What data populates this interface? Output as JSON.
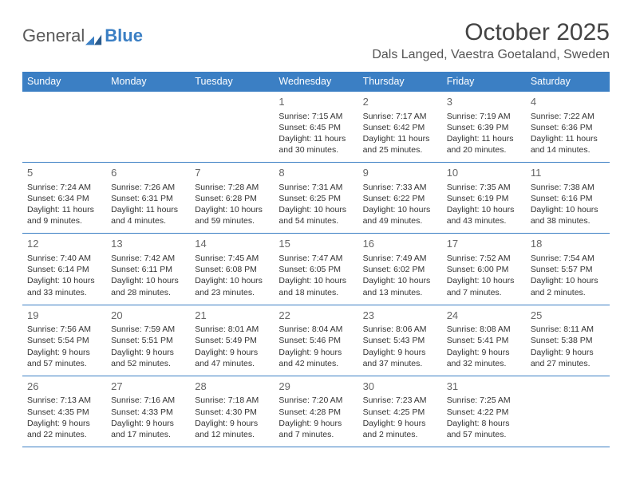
{
  "logo": {
    "general": "General",
    "blue": "Blue"
  },
  "title": "October 2025",
  "location": "Dals Langed, Vaestra Goetaland, Sweden",
  "colors": {
    "header_bg": "#3b7fc4",
    "header_text": "#ffffff",
    "rule": "#3b7fc4",
    "text": "#333333",
    "daynum": "#666666",
    "logo_gray": "#5a5a5a",
    "logo_blue": "#3b7fc4",
    "background": "#ffffff"
  },
  "dow": [
    "Sunday",
    "Monday",
    "Tuesday",
    "Wednesday",
    "Thursday",
    "Friday",
    "Saturday"
  ],
  "weeks": [
    [
      null,
      null,
      null,
      {
        "n": "1",
        "sr": "7:15 AM",
        "ss": "6:45 PM",
        "dl": "11 hours and 30 minutes."
      },
      {
        "n": "2",
        "sr": "7:17 AM",
        "ss": "6:42 PM",
        "dl": "11 hours and 25 minutes."
      },
      {
        "n": "3",
        "sr": "7:19 AM",
        "ss": "6:39 PM",
        "dl": "11 hours and 20 minutes."
      },
      {
        "n": "4",
        "sr": "7:22 AM",
        "ss": "6:36 PM",
        "dl": "11 hours and 14 minutes."
      }
    ],
    [
      {
        "n": "5",
        "sr": "7:24 AM",
        "ss": "6:34 PM",
        "dl": "11 hours and 9 minutes."
      },
      {
        "n": "6",
        "sr": "7:26 AM",
        "ss": "6:31 PM",
        "dl": "11 hours and 4 minutes."
      },
      {
        "n": "7",
        "sr": "7:28 AM",
        "ss": "6:28 PM",
        "dl": "10 hours and 59 minutes."
      },
      {
        "n": "8",
        "sr": "7:31 AM",
        "ss": "6:25 PM",
        "dl": "10 hours and 54 minutes."
      },
      {
        "n": "9",
        "sr": "7:33 AM",
        "ss": "6:22 PM",
        "dl": "10 hours and 49 minutes."
      },
      {
        "n": "10",
        "sr": "7:35 AM",
        "ss": "6:19 PM",
        "dl": "10 hours and 43 minutes."
      },
      {
        "n": "11",
        "sr": "7:38 AM",
        "ss": "6:16 PM",
        "dl": "10 hours and 38 minutes."
      }
    ],
    [
      {
        "n": "12",
        "sr": "7:40 AM",
        "ss": "6:14 PM",
        "dl": "10 hours and 33 minutes."
      },
      {
        "n": "13",
        "sr": "7:42 AM",
        "ss": "6:11 PM",
        "dl": "10 hours and 28 minutes."
      },
      {
        "n": "14",
        "sr": "7:45 AM",
        "ss": "6:08 PM",
        "dl": "10 hours and 23 minutes."
      },
      {
        "n": "15",
        "sr": "7:47 AM",
        "ss": "6:05 PM",
        "dl": "10 hours and 18 minutes."
      },
      {
        "n": "16",
        "sr": "7:49 AM",
        "ss": "6:02 PM",
        "dl": "10 hours and 13 minutes."
      },
      {
        "n": "17",
        "sr": "7:52 AM",
        "ss": "6:00 PM",
        "dl": "10 hours and 7 minutes."
      },
      {
        "n": "18",
        "sr": "7:54 AM",
        "ss": "5:57 PM",
        "dl": "10 hours and 2 minutes."
      }
    ],
    [
      {
        "n": "19",
        "sr": "7:56 AM",
        "ss": "5:54 PM",
        "dl": "9 hours and 57 minutes."
      },
      {
        "n": "20",
        "sr": "7:59 AM",
        "ss": "5:51 PM",
        "dl": "9 hours and 52 minutes."
      },
      {
        "n": "21",
        "sr": "8:01 AM",
        "ss": "5:49 PM",
        "dl": "9 hours and 47 minutes."
      },
      {
        "n": "22",
        "sr": "8:04 AM",
        "ss": "5:46 PM",
        "dl": "9 hours and 42 minutes."
      },
      {
        "n": "23",
        "sr": "8:06 AM",
        "ss": "5:43 PM",
        "dl": "9 hours and 37 minutes."
      },
      {
        "n": "24",
        "sr": "8:08 AM",
        "ss": "5:41 PM",
        "dl": "9 hours and 32 minutes."
      },
      {
        "n": "25",
        "sr": "8:11 AM",
        "ss": "5:38 PM",
        "dl": "9 hours and 27 minutes."
      }
    ],
    [
      {
        "n": "26",
        "sr": "7:13 AM",
        "ss": "4:35 PM",
        "dl": "9 hours and 22 minutes."
      },
      {
        "n": "27",
        "sr": "7:16 AM",
        "ss": "4:33 PM",
        "dl": "9 hours and 17 minutes."
      },
      {
        "n": "28",
        "sr": "7:18 AM",
        "ss": "4:30 PM",
        "dl": "9 hours and 12 minutes."
      },
      {
        "n": "29",
        "sr": "7:20 AM",
        "ss": "4:28 PM",
        "dl": "9 hours and 7 minutes."
      },
      {
        "n": "30",
        "sr": "7:23 AM",
        "ss": "4:25 PM",
        "dl": "9 hours and 2 minutes."
      },
      {
        "n": "31",
        "sr": "7:25 AM",
        "ss": "4:22 PM",
        "dl": "8 hours and 57 minutes."
      },
      null
    ]
  ],
  "labels": {
    "sunrise": "Sunrise: ",
    "sunset": "Sunset: ",
    "daylight": "Daylight: "
  }
}
